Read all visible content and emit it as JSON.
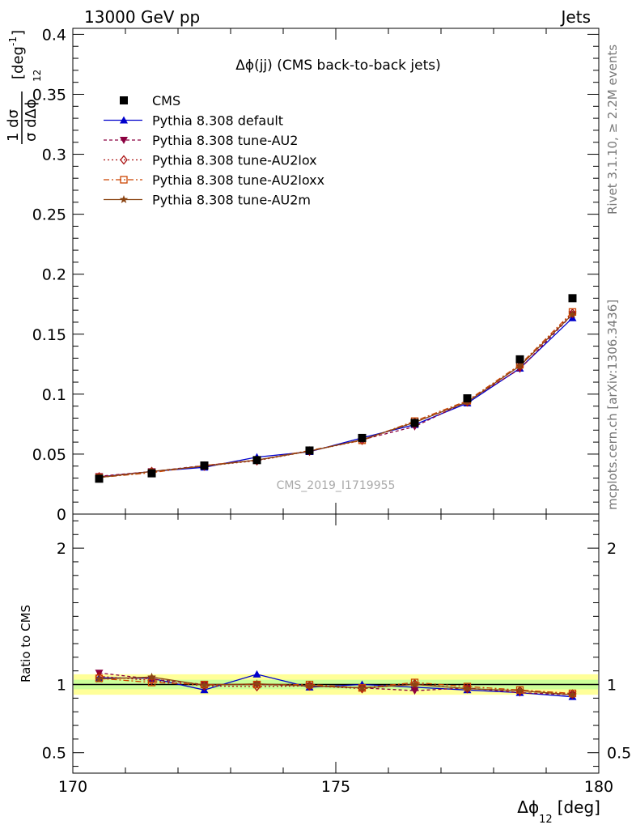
{
  "header": {
    "left": "13000 GeV pp",
    "right": "Jets"
  },
  "side_text": {
    "rivet": "Rivet 3.1.10, ≥ 2.2M events",
    "mcplots": "mcplots.cern.ch [arXiv:1306.3436]"
  },
  "watermark": "CMS_2019_I1719955",
  "colors": {
    "cms": "#000000",
    "default": "#0000cc",
    "au2": "#8b0040",
    "au2lox": "#aa1111",
    "au2loxx": "#cc4400",
    "au2m": "#8b4513",
    "band_outer": "#ffff99",
    "band_inner": "#ccff99"
  },
  "chart_data": [
    {
      "type": "line",
      "title": "Δϕ(jj) (CMS back-to-back jets)",
      "ylabel_num": "1  dσ",
      "ylabel_den": "σ dΔϕ",
      "ylabel_sub": "12",
      "ylabel_unit": "[deg",
      "ylabel_unit_sup": "-1",
      "ylabel_unit_end": "]",
      "xlim": [
        170,
        180
      ],
      "ylim": [
        0,
        0.405
      ],
      "yticks": [
        0,
        0.05,
        0.1,
        0.15,
        0.2,
        0.25,
        0.3,
        0.35,
        0.4
      ],
      "ytick_labels": [
        "0",
        "0.05",
        "0.1",
        "0.15",
        "0.2",
        "0.25",
        "0.3",
        "0.35",
        "0.4"
      ],
      "x": [
        170.5,
        171.5,
        172.5,
        173.5,
        174.5,
        175.5,
        176.5,
        177.5,
        178.5,
        179.5
      ],
      "series": [
        {
          "name": "CMS",
          "key": "cms",
          "marker": "square",
          "values": [
            0.0295,
            0.034,
            0.0405,
            0.045,
            0.053,
            0.0635,
            0.076,
            0.0965,
            0.129,
            0.18
          ]
        },
        {
          "name": "Pythia 8.308 default",
          "key": "default",
          "marker": "triangle-up",
          "dash": "",
          "values": [
            0.031,
            0.0355,
            0.039,
            0.0475,
            0.052,
            0.0635,
            0.0745,
            0.0925,
            0.1215,
            0.1635
          ]
        },
        {
          "name": "Pythia 8.308 tune-AU2",
          "key": "au2",
          "marker": "triangle-down",
          "dash": "4,3",
          "values": [
            0.0315,
            0.0355,
            0.0405,
            0.045,
            0.0525,
            0.062,
            0.073,
            0.094,
            0.121,
            0.1665
          ]
        },
        {
          "name": "Pythia 8.308 tune-AU2lox",
          "key": "au2lox",
          "marker": "diamond",
          "dash": "2,3",
          "values": [
            0.031,
            0.0355,
            0.04,
            0.0445,
            0.0525,
            0.0615,
            0.0765,
            0.0935,
            0.1235,
            0.1675
          ]
        },
        {
          "name": "Pythia 8.308 tune-AU2loxx",
          "key": "au2loxx",
          "marker": "square-open",
          "dash": "7,3,2,3",
          "values": [
            0.0305,
            0.0345,
            0.0405,
            0.045,
            0.053,
            0.0615,
            0.0775,
            0.0945,
            0.1245,
            0.1685
          ]
        },
        {
          "name": "Pythia 8.308 tune-AU2m",
          "key": "au2m",
          "marker": "star",
          "dash": "",
          "values": [
            0.0305,
            0.0355,
            0.04,
            0.045,
            0.0525,
            0.062,
            0.0765,
            0.0935,
            0.1235,
            0.1665
          ]
        }
      ],
      "legend_placement": "top-left"
    },
    {
      "type": "line",
      "ylabel": "Ratio to CMS",
      "xlabel": "Δϕ",
      "xlabel_sub": "12",
      "xlabel_unit": "[deg]",
      "xlim": [
        170,
        180
      ],
      "ylim": [
        0.35,
        2.25
      ],
      "xticks": [
        170,
        175,
        180
      ],
      "xtick_labels": [
        "170",
        "175",
        "180"
      ],
      "yticks": [
        0.5,
        1,
        2
      ],
      "ytick_labels": [
        "0.5",
        "1",
        "2"
      ],
      "x": [
        170.5,
        171.5,
        172.5,
        173.5,
        174.5,
        175.5,
        176.5,
        177.5,
        178.5,
        179.5
      ],
      "band_outer": [
        0.925,
        1.075
      ],
      "band_inner": [
        0.965,
        1.035
      ],
      "series": [
        {
          "name": "Pythia 8.308 default",
          "key": "default",
          "values": [
            1.05,
            1.045,
            0.96,
            1.075,
            0.98,
            1.0,
            0.98,
            0.96,
            0.94,
            0.91
          ]
        },
        {
          "name": "Pythia 8.308 tune-AU2",
          "key": "au2",
          "values": [
            1.085,
            1.04,
            1.0,
            1.0,
            0.99,
            0.975,
            0.955,
            0.975,
            0.94,
            0.925
          ]
        },
        {
          "name": "Pythia 8.308 tune-AU2lox",
          "key": "au2lox",
          "values": [
            1.06,
            1.03,
            0.99,
            0.985,
            0.99,
            0.97,
            1.005,
            0.97,
            0.955,
            0.93
          ]
        },
        {
          "name": "Pythia 8.308 tune-AU2loxx",
          "key": "au2loxx",
          "values": [
            1.045,
            1.015,
            1.0,
            1.0,
            1.0,
            0.975,
            1.015,
            0.985,
            0.96,
            0.935
          ]
        },
        {
          "name": "Pythia 8.308 tune-AU2m",
          "key": "au2m",
          "values": [
            1.04,
            1.055,
            0.995,
            1.005,
            0.99,
            0.975,
            1.0,
            0.97,
            0.955,
            0.925
          ]
        }
      ]
    }
  ]
}
